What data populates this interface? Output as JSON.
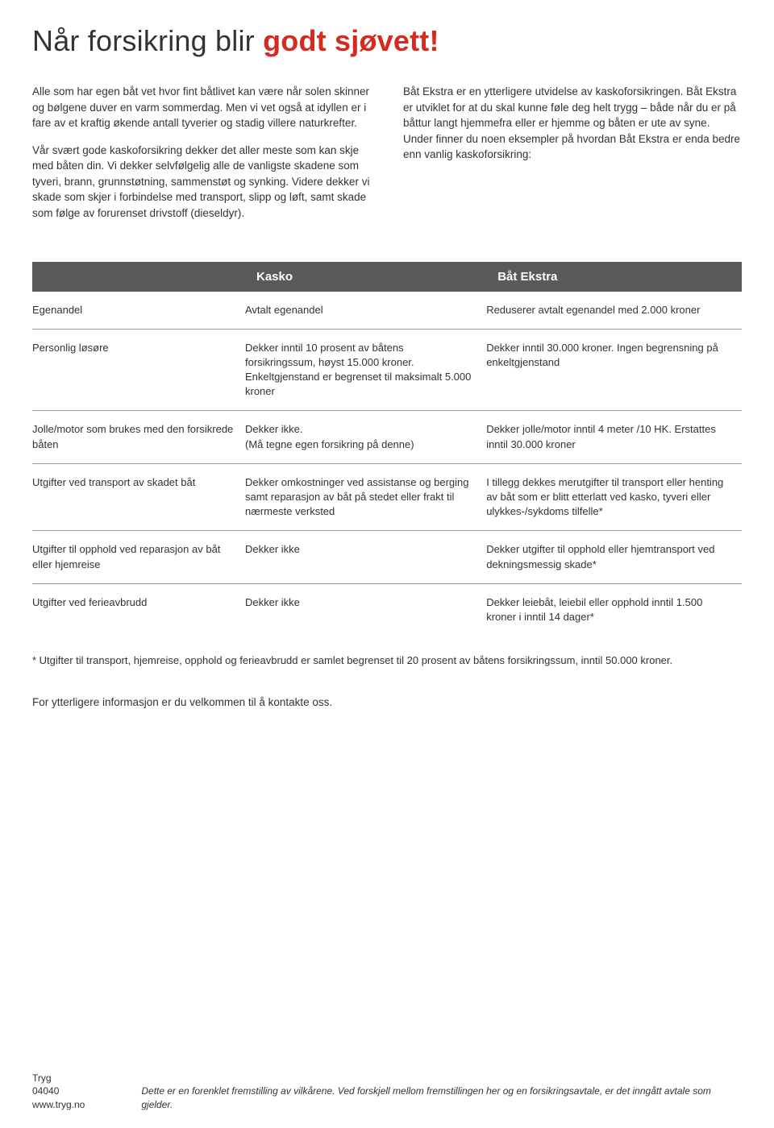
{
  "colors": {
    "accent": "#d52b1e",
    "table_header_bg": "#5a5a5a",
    "text": "#333333",
    "rule": "#999999",
    "background": "#ffffff"
  },
  "headline": {
    "part1": "Når forsikring blir ",
    "part2": "godt sjøvett!"
  },
  "intro": {
    "left": {
      "p1": "Alle som har egen båt vet hvor fint båtlivet kan være når solen skinner og bølgene duver en varm sommerdag. Men vi vet også at idyllen er i fare av et kraftig økende antall tyverier og stadig villere naturkrefter.",
      "p2": "Vår svært gode kaskoforsikring dekker det aller meste som kan skje med båten din. Vi dekker selvfølgelig alle de vanligste skadene som tyveri, brann, grunnstøtning, sammenstøt og synking. Videre dekker vi skade som skjer i forbindelse med transport, slipp og løft, samt skade som følge av forurenset drivstoff (dieseldyr)."
    },
    "right": {
      "p1": "Båt Ekstra er en ytterligere utvidelse av kaskoforsikringen. Båt Ekstra er utviklet for at du skal kunne føle deg helt trygg – både når du er på båttur langt hjemmefra eller er hjemme og båten er ute av syne. Under finner du noen eksempler på hvordan Båt Ekstra er enda bedre enn vanlig kaskoforsikring:"
    }
  },
  "table": {
    "head": {
      "col1": "",
      "col2": "Kasko",
      "col3": "Båt Ekstra"
    },
    "rows": [
      {
        "label": "Egenandel",
        "kasko": "Avtalt egenandel",
        "ekstra": "Reduserer avtalt egenandel med 2.000 kroner"
      },
      {
        "label": "Personlig løsøre",
        "kasko": "Dekker inntil 10 prosent av båtens forsikringssum, høyst 15.000 kroner. Enkeltgjenstand er begrenset til maksimalt 5.000 kroner",
        "ekstra": "Dekker inntil 30.000 kroner. Ingen begrensning på enkeltgjenstand"
      },
      {
        "label": "Jolle/motor som brukes med den forsikrede båten",
        "kasko": "Dekker ikke.\n(Må tegne egen forsikring på denne)",
        "ekstra": "Dekker jolle/motor inntil 4 meter /10 HK. Erstattes inntil 30.000 kroner"
      },
      {
        "label": "Utgifter ved transport av skadet båt",
        "kasko": "Dekker omkostninger ved assistanse og berging samt reparasjon av båt på stedet eller frakt til nærmeste verksted",
        "ekstra": "I tillegg dekkes merutgifter til transport eller henting av båt som er blitt etterlatt ved kasko, tyveri eller ulykkes-/sykdoms tilfelle*"
      },
      {
        "label": "Utgifter til opphold ved reparasjon av båt eller hjemreise",
        "kasko": "Dekker ikke",
        "ekstra": "Dekker utgifter til opphold eller hjemtransport ved dekningsmessig skade*"
      },
      {
        "label": "Utgifter ved ferieavbrudd",
        "kasko": "Dekker ikke",
        "ekstra": "Dekker leiebåt, leiebil eller opphold inntil 1.500 kroner i inntil 14 dager*"
      }
    ]
  },
  "footnote": "* Utgifter til transport, hjemreise, opphold og ferieavbrudd er samlet begrenset til 20 prosent av båtens forsikringssum, inntil 50.000 kroner.",
  "contact_line": "For ytterligere informasjon er du velkommen til å kontakte oss.",
  "footer": {
    "brand": "Tryg",
    "phone": "04040",
    "url": "www.tryg.no",
    "disclaimer": "Dette er en forenklet fremstilling av vilkårene. Ved forskjell mellom fremstillingen her og en forsikringsavtale, er det inngått avtale som gjelder."
  }
}
